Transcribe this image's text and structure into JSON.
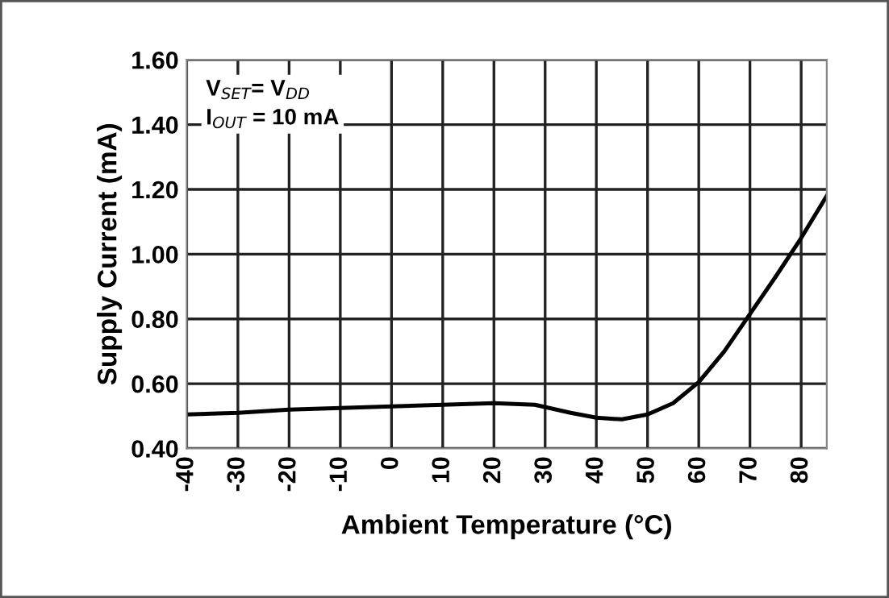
{
  "chart_data": {
    "type": "line",
    "xlabel": "Ambient Temperature (°C)",
    "ylabel": "Supply Current (mA)",
    "annotations": [
      "V$_{SET}$= V$_{DD}$\nI$_{OUT}$ = 10 mA"
    ],
    "x": [
      -40,
      -30,
      -20,
      -10,
      0,
      10,
      20,
      28,
      35,
      40,
      45,
      50,
      55,
      60,
      65,
      70,
      75,
      80,
      85
    ],
    "series": [
      {
        "color": "#000000",
        "values": [
          0.505,
          0.51,
          0.52,
          0.525,
          0.53,
          0.535,
          0.54,
          0.535,
          0.51,
          0.495,
          0.49,
          0.505,
          0.54,
          0.605,
          0.7,
          0.815,
          0.93,
          1.05,
          1.18
        ]
      }
    ],
    "xlim": [
      -40,
      85
    ],
    "xticks": [
      -40,
      -30,
      -20,
      -10,
      0,
      10,
      20,
      30,
      40,
      50,
      60,
      70,
      80
    ],
    "ylim": [
      0.4,
      1.6
    ],
    "yticks": [
      {
        "value": 0.4,
        "label": "0.40"
      },
      {
        "value": 0.6,
        "label": "0.60"
      },
      {
        "value": 0.8,
        "label": "0.80"
      },
      {
        "value": 1.0,
        "label": "1.00"
      },
      {
        "value": 1.2,
        "label": "1.20"
      },
      {
        "value": 1.4,
        "label": "1.40"
      },
      {
        "value": 1.6,
        "label": "1.60"
      }
    ],
    "grid": true,
    "marker": "none",
    "line_style": "solid"
  }
}
